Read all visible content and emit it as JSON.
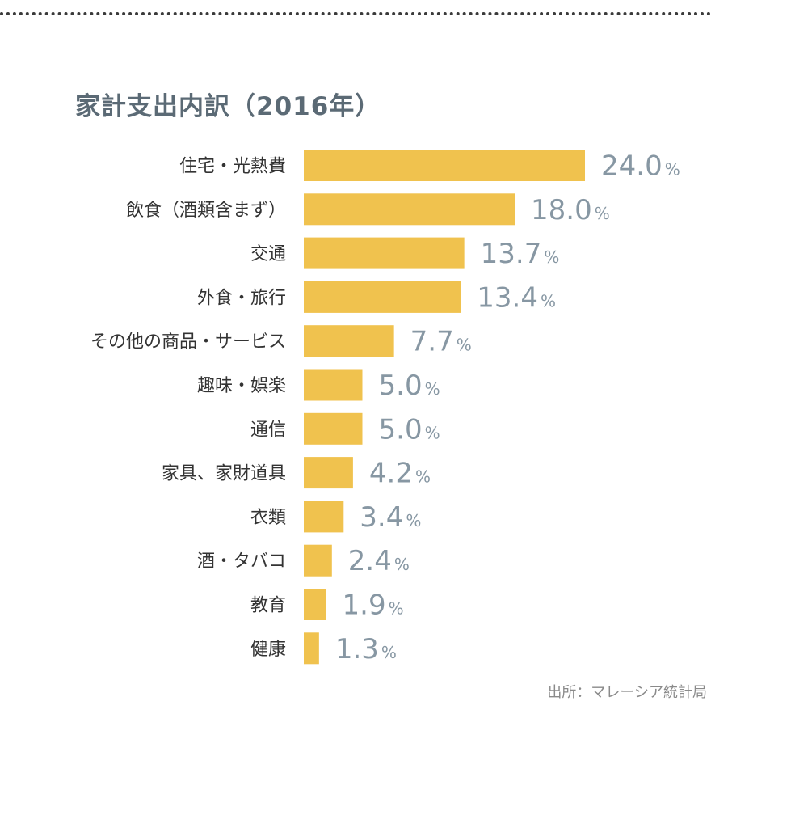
{
  "title": "家計支出内訳（2016年）",
  "source": "出所：マレーシア統計局",
  "chart_data": {
    "type": "bar",
    "orientation": "horizontal",
    "title": "家計支出内訳（2016年）",
    "unit": "%",
    "bar_color": "#f0c24e",
    "value_color": "#8797a3",
    "categories": [
      "住宅・光熱費",
      "飲食（酒類含まず）",
      "交通",
      "外食・旅行",
      "その他の商品・サービス",
      "趣味・娯楽",
      "通信",
      "家具、家財道具",
      "衣類",
      "酒・タバコ",
      "教育",
      "健康"
    ],
    "values": [
      24.0,
      18.0,
      13.7,
      13.4,
      7.7,
      5.0,
      5.0,
      4.2,
      3.4,
      2.4,
      1.9,
      1.3
    ],
    "value_labels": [
      "24.0",
      "18.0",
      "13.7",
      "13.4",
      "7.7",
      "5.0",
      "5.0",
      "4.2",
      "3.4",
      "2.4",
      "1.9",
      "1.3"
    ]
  }
}
